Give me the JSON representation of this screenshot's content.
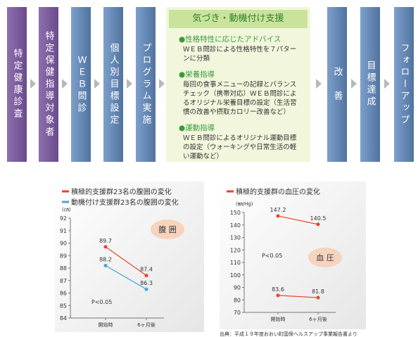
{
  "flow": {
    "steps_before": [
      "特定健康診査",
      "特定保健指導対象者",
      "ＷＥＢ問診",
      "個人別目標設定",
      "プログラム実施"
    ],
    "support": {
      "title": "気づき・動機付け支援",
      "items": [
        {
          "heading": "●性格特性に応じたアドバイス",
          "text": "ＷＥＢ問診による性格特性を７パターンに分類"
        },
        {
          "heading": "●栄養指導",
          "text": "毎回の食事メニューの記録とバランスチェック（携帯対応）ＷＥＢ問診によるオリジナル栄養目標の設定（生活習慣の改善や摂取カロリー改善など）"
        },
        {
          "heading": "●運動指導",
          "text": "ＷＥＢ問診によるオリジナル運動目標の設定（ウォーキングや日常生活の軽い運動など）"
        }
      ]
    },
    "steps_after": [
      "改　善",
      "目標達成",
      "フォローアップ"
    ]
  },
  "chart_data": [
    {
      "type": "line",
      "ylabel": "(㎝)",
      "badge": "腹 囲",
      "annotation": "P<0.05",
      "categories": [
        "開始時",
        "6ヶ月後"
      ],
      "series": [
        {
          "name": "積極的支援群23名の腹囲の変化",
          "color": "#e8432b",
          "values": [
            89.7,
            87.4
          ]
        },
        {
          "name": "動機付け支援群23名の腹囲の変化",
          "color": "#4fa3d8",
          "values": [
            88.2,
            86.3
          ]
        }
      ],
      "ylim": [
        84,
        92
      ],
      "yticks": [
        84,
        85,
        86,
        87,
        88,
        89,
        90,
        91,
        92
      ]
    },
    {
      "type": "line",
      "ylabel": "(㎜/Hg)",
      "badge": "血 圧",
      "annotation": "P<0.05",
      "categories": [
        "開始時",
        "6ヶ月後"
      ],
      "series": [
        {
          "name": "積極的支援群の血圧の変化",
          "color": "#e8432b",
          "values": [
            147.2,
            140.5
          ]
        },
        {
          "color": "#e8432b",
          "values": [
            83.6,
            81.8
          ]
        }
      ],
      "ylim": [
        70,
        150
      ],
      "yticks": [
        70,
        80,
        90,
        100,
        110,
        120,
        130,
        140,
        150
      ]
    }
  ],
  "source": "出典：平成１９年度おおい町国保ヘルスアップ事業報告書より"
}
